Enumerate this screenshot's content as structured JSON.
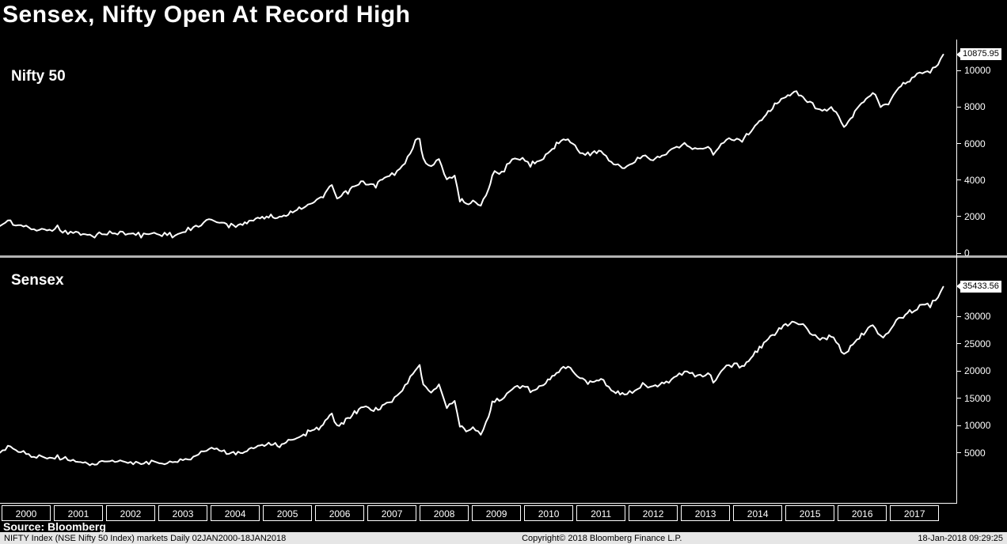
{
  "title": "Sensex, Nifty Open At Record High",
  "source": "Source: Bloomberg",
  "status_bar": {
    "left": "NIFTY Index (NSE Nifty 50 Index) markets  Daily 02JAN2000-18JAN2018",
    "center": "Copyright© 2018 Bloomberg Finance L.P.",
    "right": "18-Jan-2018 09:29:25"
  },
  "colors": {
    "background": "#000000",
    "line": "#ffffff",
    "divider": "#b3b3b3",
    "axis": "#ffffff",
    "price_box_bg": "#ffffff",
    "price_box_text": "#000000",
    "statusbar_bg": "#e6e6e6",
    "statusbar_text": "#000000"
  },
  "x_axis": {
    "years": [
      "2000",
      "2001",
      "2002",
      "2003",
      "2004",
      "2005",
      "2006",
      "2007",
      "2008",
      "2009",
      "2010",
      "2011",
      "2012",
      "2013",
      "2014",
      "2015",
      "2016",
      "2017"
    ],
    "range_label": "02JAN2000-18JAN2018"
  },
  "chart_data": [
    {
      "type": "line",
      "title": "Nifty 50",
      "legend_position": "top-left",
      "grid": false,
      "axis_side": "right",
      "line_color": "#ffffff",
      "last_price": "10875.95",
      "ylim": [
        0,
        11700
      ],
      "yticks": [
        0,
        2000,
        4000,
        6000,
        8000,
        10000
      ],
      "x_range": [
        2000,
        2018.3
      ],
      "x": [
        2000.0,
        2000.15,
        2000.3,
        2000.5,
        2000.7,
        2000.9,
        2001.1,
        2001.3,
        2001.5,
        2001.72,
        2001.9,
        2002.1,
        2002.3,
        2002.5,
        2002.7,
        2002.9,
        2003.1,
        2003.3,
        2003.5,
        2003.7,
        2003.9,
        2004.0,
        2004.15,
        2004.38,
        2004.6,
        2004.85,
        2005.1,
        2005.35,
        2005.6,
        2005.85,
        2006.1,
        2006.35,
        2006.45,
        2006.7,
        2006.95,
        2007.15,
        2007.4,
        2007.6,
        2007.8,
        2007.95,
        2008.03,
        2008.1,
        2008.25,
        2008.4,
        2008.55,
        2008.7,
        2008.8,
        2008.92,
        2009.05,
        2009.2,
        2009.35,
        2009.42,
        2009.6,
        2009.8,
        2010.0,
        2010.15,
        2010.4,
        2010.65,
        2010.87,
        2011.05,
        2011.25,
        2011.5,
        2011.7,
        2011.95,
        2012.1,
        2012.3,
        2012.5,
        2012.75,
        2012.95,
        2013.15,
        2013.35,
        2013.55,
        2013.65,
        2013.85,
        2014.0,
        2014.2,
        2014.45,
        2014.7,
        2014.95,
        2015.2,
        2015.45,
        2015.65,
        2015.95,
        2016.15,
        2016.4,
        2016.7,
        2016.85,
        2017.0,
        2017.2,
        2017.45,
        2017.65,
        2017.8,
        2017.95,
        2018.05
      ],
      "values": [
        1480,
        1750,
        1600,
        1400,
        1280,
        1300,
        1370,
        1150,
        1090,
        930,
        1060,
        1080,
        1130,
        1060,
        970,
        1080,
        1020,
        960,
        1120,
        1380,
        1650,
        1880,
        1800,
        1470,
        1600,
        1800,
        2060,
        1990,
        2270,
        2600,
        2900,
        3650,
        2940,
        3450,
        3950,
        3650,
        4150,
        4450,
        5250,
        6100,
        6280,
        5150,
        4750,
        5100,
        4050,
        4250,
        2900,
        2750,
        2900,
        2620,
        3470,
        4350,
        4450,
        5000,
        5200,
        4850,
        5250,
        5950,
        6280,
        5650,
        5400,
        5550,
        4950,
        4650,
        4900,
        5350,
        5050,
        5450,
        5850,
        5950,
        5650,
        5900,
        5350,
        6150,
        6300,
        6200,
        6950,
        7750,
        8400,
        8900,
        8350,
        7850,
        7950,
        6900,
        7900,
        8800,
        8050,
        8250,
        9150,
        9550,
        9950,
        9900,
        10350,
        10875.95
      ]
    },
    {
      "type": "line",
      "title": "Sensex",
      "legend_position": "top-left",
      "grid": false,
      "axis_side": "right",
      "line_color": "#ffffff",
      "last_price": "35433.56",
      "ylim": [
        -4200,
        39600
      ],
      "yticks": [
        5000,
        10000,
        15000,
        20000,
        25000,
        30000
      ],
      "x_range": [
        2000,
        2018.3
      ],
      "x": [
        2000.0,
        2000.15,
        2000.3,
        2000.5,
        2000.7,
        2000.9,
        2001.1,
        2001.3,
        2001.5,
        2001.72,
        2001.9,
        2002.1,
        2002.3,
        2002.5,
        2002.7,
        2002.9,
        2003.1,
        2003.3,
        2003.5,
        2003.7,
        2003.9,
        2004.0,
        2004.15,
        2004.38,
        2004.6,
        2004.85,
        2005.1,
        2005.35,
        2005.6,
        2005.85,
        2006.1,
        2006.35,
        2006.45,
        2006.7,
        2006.95,
        2007.15,
        2007.4,
        2007.6,
        2007.8,
        2007.95,
        2008.03,
        2008.1,
        2008.25,
        2008.4,
        2008.55,
        2008.7,
        2008.8,
        2008.92,
        2009.05,
        2009.2,
        2009.35,
        2009.42,
        2009.6,
        2009.8,
        2010.0,
        2010.15,
        2010.4,
        2010.65,
        2010.87,
        2011.05,
        2011.25,
        2011.5,
        2011.7,
        2011.95,
        2012.1,
        2012.3,
        2012.5,
        2012.75,
        2012.95,
        2013.15,
        2013.35,
        2013.55,
        2013.65,
        2013.85,
        2014.0,
        2014.2,
        2014.45,
        2014.7,
        2014.95,
        2015.2,
        2015.45,
        2015.65,
        2015.95,
        2016.15,
        2016.4,
        2016.7,
        2016.85,
        2017.0,
        2017.2,
        2017.45,
        2017.65,
        2017.8,
        2017.95,
        2018.05
      ],
      "values": [
        5010,
        6050,
        5400,
        4700,
        4250,
        4100,
        4300,
        3650,
        3450,
        2990,
        3350,
        3420,
        3550,
        3300,
        3000,
        3350,
        3200,
        3050,
        3600,
        4450,
        5300,
        5920,
        5700,
        4850,
        5200,
        5900,
        6550,
        6400,
        7400,
        8550,
        9650,
        12100,
        9850,
        11600,
        13400,
        12650,
        14200,
        15200,
        17800,
        20300,
        20850,
        17250,
        16000,
        17200,
        13600,
        14300,
        9750,
        9150,
        9600,
        8650,
        11400,
        14300,
        14900,
        16800,
        17500,
        16300,
        17600,
        19800,
        20900,
        18850,
        18000,
        18500,
        16500,
        15500,
        16300,
        17700,
        16700,
        18000,
        19300,
        19700,
        18700,
        19500,
        18100,
        20600,
        21150,
        20800,
        23300,
        25900,
        27900,
        29400,
        27600,
        26000,
        26200,
        23000,
        25900,
        28600,
        26200,
        26800,
        29600,
        31000,
        32200,
        31900,
        33400,
        35433.56
      ]
    }
  ]
}
